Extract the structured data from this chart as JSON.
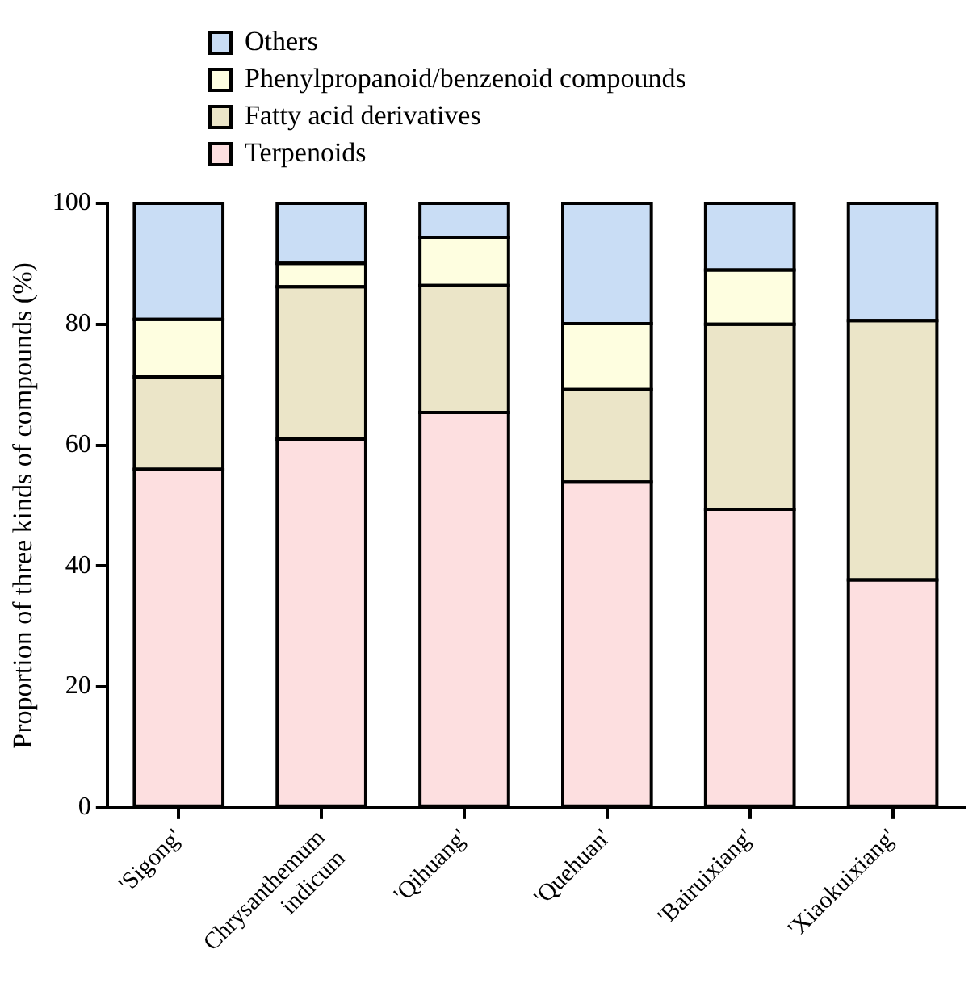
{
  "chart_data": {
    "type": "bar",
    "stacked": true,
    "ylabel": "Proportion of three kinds of compounds (%)",
    "categories": [
      "'Sigong'",
      "Chrysanthemum indicum",
      "'Qihuang'",
      "'Quehuan'",
      "'Bairuixiang'",
      "'Xiaokuixiang'"
    ],
    "series": [
      {
        "name": "Terpenoids",
        "color": "#fddfe0",
        "values": [
          56.0,
          61.0,
          65.4,
          53.9,
          49.4,
          37.7
        ]
      },
      {
        "name": "Fatty acid derivatives",
        "color": "#ebe5c8",
        "values": [
          15.3,
          25.2,
          21.0,
          15.3,
          30.6,
          42.9
        ]
      },
      {
        "name": "Phenylpropanoid/benzenoid compounds",
        "color": "#fefee0",
        "values": [
          9.5,
          3.9,
          8.0,
          10.9,
          9.0,
          0
        ]
      },
      {
        "name": "Others",
        "color": "#c9ddf5",
        "values": [
          19.2,
          9.9,
          5.6,
          19.9,
          11.0,
          19.4
        ]
      }
    ],
    "ylim": [
      0,
      100
    ],
    "yticks": [
      0,
      20,
      40,
      60,
      80,
      100
    ],
    "grid": false,
    "legend": "top left"
  }
}
